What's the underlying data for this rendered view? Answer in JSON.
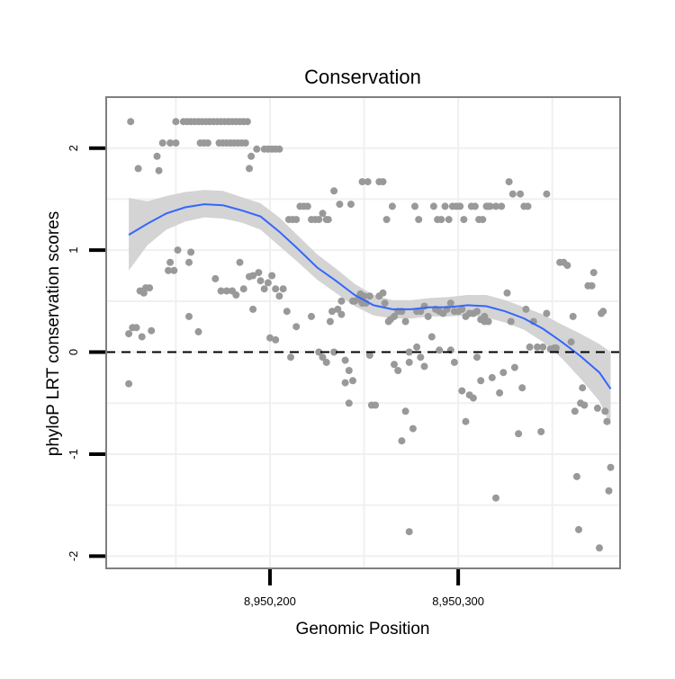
{
  "chart_data": {
    "type": "scatter",
    "title": "Conservation",
    "xlabel": "Genomic Position",
    "ylabel": "phyloP LRT conservation scores",
    "xlim": [
      8950113,
      8950386
    ],
    "ylim": [
      -2.12,
      2.5
    ],
    "x_ticks": [
      8950200,
      8950300
    ],
    "x_tick_labels": [
      "8,950,200",
      "8,950,300"
    ],
    "y_ticks": [
      -2,
      -1,
      0,
      1,
      2
    ],
    "y_tick_labels": [
      "-2",
      "-1",
      "0",
      "1",
      "2"
    ],
    "grid": true,
    "reference_line": {
      "y": 0,
      "style": "dashed"
    },
    "colors": {
      "points": "#999999",
      "smooth_line": "#3366ff",
      "confidence_band": "#d4d4d4",
      "panel_border": "#7f7f7f",
      "grid": "#f0f0f0",
      "reference_line": "#000000"
    },
    "series": [
      {
        "kind": "points",
        "points": [
          [
            8950126,
            2.26
          ],
          [
            8950130,
            1.8
          ],
          [
            8950125,
            0.18
          ],
          [
            8950127,
            0.24
          ],
          [
            8950129,
            0.24
          ],
          [
            8950131,
            0.6
          ],
          [
            8950132,
            0.15
          ],
          [
            8950134,
            0.63
          ],
          [
            8950136,
            0.63
          ],
          [
            8950133,
            0.58
          ],
          [
            8950137,
            0.21
          ],
          [
            8950125,
            -0.31
          ],
          [
            8950140,
            1.92
          ],
          [
            8950141,
            1.78
          ],
          [
            8950143,
            2.05
          ],
          [
            8950147,
            2.05
          ],
          [
            8950150,
            2.05
          ],
          [
            8950146,
            0.8
          ],
          [
            8950147,
            0.88
          ],
          [
            8950149,
            0.8
          ],
          [
            8950151,
            1.0
          ],
          [
            8950157,
            0.88
          ],
          [
            8950158,
            0.98
          ],
          [
            8950157,
            0.35
          ],
          [
            8950162,
            0.2
          ],
          [
            8950150,
            2.26
          ],
          [
            8950154,
            2.26
          ],
          [
            8950156,
            2.26
          ],
          [
            8950158,
            2.26
          ],
          [
            8950160,
            2.26
          ],
          [
            8950162,
            2.26
          ],
          [
            8950164,
            2.26
          ],
          [
            8950166,
            2.26
          ],
          [
            8950168,
            2.26
          ],
          [
            8950170,
            2.26
          ],
          [
            8950172,
            2.26
          ],
          [
            8950174,
            2.26
          ],
          [
            8950176,
            2.26
          ],
          [
            8950178,
            2.26
          ],
          [
            8950180,
            2.26
          ],
          [
            8950182,
            2.26
          ],
          [
            8950184,
            2.26
          ],
          [
            8950186,
            2.26
          ],
          [
            8950188,
            2.26
          ],
          [
            8950163,
            2.05
          ],
          [
            8950165,
            2.05
          ],
          [
            8950167,
            2.05
          ],
          [
            8950173,
            2.05
          ],
          [
            8950175,
            2.05
          ],
          [
            8950177,
            2.05
          ],
          [
            8950179,
            2.05
          ],
          [
            8950181,
            2.05
          ],
          [
            8950183,
            2.05
          ],
          [
            8950185,
            2.05
          ],
          [
            8950187,
            2.05
          ],
          [
            8950190,
            1.92
          ],
          [
            8950189,
            1.8
          ],
          [
            8950193,
            1.99
          ],
          [
            8950197,
            1.99
          ],
          [
            8950199,
            1.99
          ],
          [
            8950201,
            1.99
          ],
          [
            8950203,
            1.99
          ],
          [
            8950205,
            1.99
          ],
          [
            8950171,
            0.72
          ],
          [
            8950174,
            0.6
          ],
          [
            8950177,
            0.6
          ],
          [
            8950180,
            0.6
          ],
          [
            8950182,
            0.56
          ],
          [
            8950184,
            0.88
          ],
          [
            8950186,
            0.62
          ],
          [
            8950189,
            0.74
          ],
          [
            8950191,
            0.75
          ],
          [
            8950194,
            0.78
          ],
          [
            8950195,
            0.7
          ],
          [
            8950197,
            0.62
          ],
          [
            8950199,
            0.68
          ],
          [
            8950201,
            0.75
          ],
          [
            8950203,
            0.62
          ],
          [
            8950205,
            0.55
          ],
          [
            8950207,
            0.62
          ],
          [
            8950191,
            0.42
          ],
          [
            8950200,
            0.14
          ],
          [
            8950203,
            0.12
          ],
          [
            8950209,
            0.4
          ],
          [
            8950211,
            -0.05
          ],
          [
            8950210,
            1.3
          ],
          [
            8950212,
            1.3
          ],
          [
            8950214,
            1.3
          ],
          [
            8950216,
            1.43
          ],
          [
            8950218,
            1.43
          ],
          [
            8950220,
            1.43
          ],
          [
            8950222,
            1.3
          ],
          [
            8950224,
            1.3
          ],
          [
            8950226,
            1.3
          ],
          [
            8950228,
            1.36
          ],
          [
            8950230,
            1.3
          ],
          [
            8950231,
            1.3
          ],
          [
            8950214,
            0.25
          ],
          [
            8950222,
            0.35
          ],
          [
            8950226,
            0.0
          ],
          [
            8950228,
            -0.05
          ],
          [
            8950230,
            -0.1
          ],
          [
            8950232,
            0.3
          ],
          [
            8950233,
            0.4
          ],
          [
            8950234,
            0.0
          ],
          [
            8950236,
            0.42
          ],
          [
            8950238,
            0.5
          ],
          [
            8950240,
            -0.08
          ],
          [
            8950242,
            -0.18
          ],
          [
            8950244,
            0.5
          ],
          [
            8950245,
            0.5
          ],
          [
            8950247,
            0.52
          ],
          [
            8950249,
            0.48
          ],
          [
            8950251,
            0.48
          ],
          [
            8950253,
            0.55
          ],
          [
            8950234,
            1.58
          ],
          [
            8950237,
            1.45
          ],
          [
            8950243,
            1.45
          ],
          [
            8950249,
            1.67
          ],
          [
            8950252,
            1.67
          ],
          [
            8950258,
            1.67
          ],
          [
            8950260,
            1.67
          ],
          [
            8950238,
            0.37
          ],
          [
            8950240,
            -0.3
          ],
          [
            8950242,
            -0.5
          ],
          [
            8950244,
            -0.28
          ],
          [
            8950248,
            0.57
          ],
          [
            8950250,
            0.55
          ],
          [
            8950253,
            -0.03
          ],
          [
            8950254,
            -0.52
          ],
          [
            8950256,
            -0.52
          ],
          [
            8950258,
            0.55
          ],
          [
            8950260,
            0.58
          ],
          [
            8950261,
            0.48
          ],
          [
            8950263,
            0.3
          ],
          [
            8950264,
            0.32
          ],
          [
            8950266,
            -0.12
          ],
          [
            8950268,
            -0.18
          ],
          [
            8950270,
            -0.87
          ],
          [
            8950272,
            -0.58
          ],
          [
            8950274,
            -1.76
          ],
          [
            8950274,
            -0.1
          ],
          [
            8950262,
            1.3
          ],
          [
            8950265,
            1.43
          ],
          [
            8950277,
            1.43
          ],
          [
            8950279,
            1.3
          ],
          [
            8950287,
            1.43
          ],
          [
            8950289,
            1.3
          ],
          [
            8950291,
            1.3
          ],
          [
            8950293,
            1.43
          ],
          [
            8950295,
            1.3
          ],
          [
            8950297,
            1.43
          ],
          [
            8950299,
            1.43
          ],
          [
            8950301,
            1.43
          ],
          [
            8950303,
            1.3
          ],
          [
            8950307,
            1.43
          ],
          [
            8950309,
            1.43
          ],
          [
            8950311,
            1.3
          ],
          [
            8950313,
            1.3
          ],
          [
            8950315,
            1.43
          ],
          [
            8950317,
            1.43
          ],
          [
            8950266,
            0.35
          ],
          [
            8950268,
            0.4
          ],
          [
            8950270,
            0.4
          ],
          [
            8950272,
            0.3
          ],
          [
            8950274,
            0.0
          ],
          [
            8950276,
            -0.75
          ],
          [
            8950278,
            0.4
          ],
          [
            8950280,
            0.4
          ],
          [
            8950282,
            0.45
          ],
          [
            8950284,
            0.35
          ],
          [
            8950286,
            0.15
          ],
          [
            8950288,
            0.42
          ],
          [
            8950290,
            0.4
          ],
          [
            8950292,
            0.38
          ],
          [
            8950294,
            0.42
          ],
          [
            8950296,
            0.48
          ],
          [
            8950298,
            0.4
          ],
          [
            8950300,
            0.4
          ],
          [
            8950302,
            0.42
          ],
          [
            8950304,
            0.35
          ],
          [
            8950306,
            0.38
          ],
          [
            8950308,
            0.38
          ],
          [
            8950310,
            0.4
          ],
          [
            8950312,
            0.32
          ],
          [
            8950314,
            0.35
          ],
          [
            8950316,
            0.3
          ],
          [
            8950278,
            0.05
          ],
          [
            8950280,
            -0.05
          ],
          [
            8950282,
            -0.14
          ],
          [
            8950290,
            0.02
          ],
          [
            8950296,
            0.02
          ],
          [
            8950298,
            -0.1
          ],
          [
            8950302,
            -0.38
          ],
          [
            8950304,
            -0.68
          ],
          [
            8950306,
            -0.42
          ],
          [
            8950308,
            -0.45
          ],
          [
            8950310,
            -0.05
          ],
          [
            8950312,
            -0.28
          ],
          [
            8950314,
            0.3
          ],
          [
            8950318,
            -0.25
          ],
          [
            8950320,
            -1.43
          ],
          [
            8950322,
            -0.4
          ],
          [
            8950324,
            -0.2
          ],
          [
            8950326,
            0.58
          ],
          [
            8950328,
            0.3
          ],
          [
            8950330,
            -0.15
          ],
          [
            8950332,
            -0.8
          ],
          [
            8950334,
            -0.35
          ],
          [
            8950316,
            1.43
          ],
          [
            8950320,
            1.43
          ],
          [
            8950323,
            1.43
          ],
          [
            8950327,
            1.67
          ],
          [
            8950329,
            1.55
          ],
          [
            8950333,
            1.55
          ],
          [
            8950335,
            1.43
          ],
          [
            8950337,
            1.43
          ],
          [
            8950347,
            1.55
          ],
          [
            8950336,
            0.42
          ],
          [
            8950338,
            0.05
          ],
          [
            8950340,
            0.3
          ],
          [
            8950342,
            0.05
          ],
          [
            8950344,
            -0.78
          ],
          [
            8950345,
            0.05
          ],
          [
            8950347,
            0.38
          ],
          [
            8950349,
            0.03
          ],
          [
            8950351,
            0.04
          ],
          [
            8950352,
            0.04
          ],
          [
            8950354,
            0.88
          ],
          [
            8950356,
            0.88
          ],
          [
            8950358,
            0.85
          ],
          [
            8950360,
            0.1
          ],
          [
            8950361,
            0.35
          ],
          [
            8950362,
            -0.58
          ],
          [
            8950363,
            -1.22
          ],
          [
            8950365,
            -0.5
          ],
          [
            8950367,
            -0.52
          ],
          [
            8950369,
            0.65
          ],
          [
            8950371,
            0.65
          ],
          [
            8950372,
            0.78
          ],
          [
            8950374,
            -0.55
          ],
          [
            8950375,
            -1.92
          ],
          [
            8950364,
            -1.74
          ],
          [
            8950366,
            -0.35
          ],
          [
            8950376,
            0.38
          ],
          [
            8950377,
            0.4
          ],
          [
            8950378,
            -0.58
          ],
          [
            8950379,
            -0.68
          ],
          [
            8950380,
            -1.36
          ],
          [
            8950381,
            -1.13
          ]
        ]
      },
      {
        "kind": "smooth",
        "x": [
          8950125,
          8950135,
          8950145,
          8950155,
          8950165,
          8950175,
          8950185,
          8950195,
          8950205,
          8950215,
          8950225,
          8950235,
          8950245,
          8950255,
          8950265,
          8950275,
          8950285,
          8950295,
          8950305,
          8950315,
          8950325,
          8950335,
          8950345,
          8950355,
          8950365,
          8950375,
          8950381
        ],
        "y": [
          1.15,
          1.26,
          1.36,
          1.42,
          1.45,
          1.44,
          1.39,
          1.33,
          1.18,
          1.01,
          0.83,
          0.7,
          0.56,
          0.46,
          0.42,
          0.42,
          0.44,
          0.44,
          0.46,
          0.45,
          0.4,
          0.33,
          0.23,
          0.1,
          -0.04,
          -0.2,
          -0.36
        ],
        "lower": [
          0.8,
          1.05,
          1.2,
          1.28,
          1.32,
          1.31,
          1.27,
          1.2,
          1.04,
          0.88,
          0.71,
          0.58,
          0.45,
          0.36,
          0.33,
          0.33,
          0.35,
          0.35,
          0.36,
          0.34,
          0.29,
          0.22,
          0.1,
          -0.06,
          -0.26,
          -0.48,
          -0.72
        ],
        "upper": [
          1.51,
          1.48,
          1.53,
          1.57,
          1.59,
          1.58,
          1.52,
          1.46,
          1.32,
          1.14,
          0.96,
          0.82,
          0.67,
          0.56,
          0.51,
          0.51,
          0.53,
          0.54,
          0.56,
          0.56,
          0.51,
          0.44,
          0.37,
          0.27,
          0.18,
          0.08,
          0.0
        ]
      }
    ]
  }
}
